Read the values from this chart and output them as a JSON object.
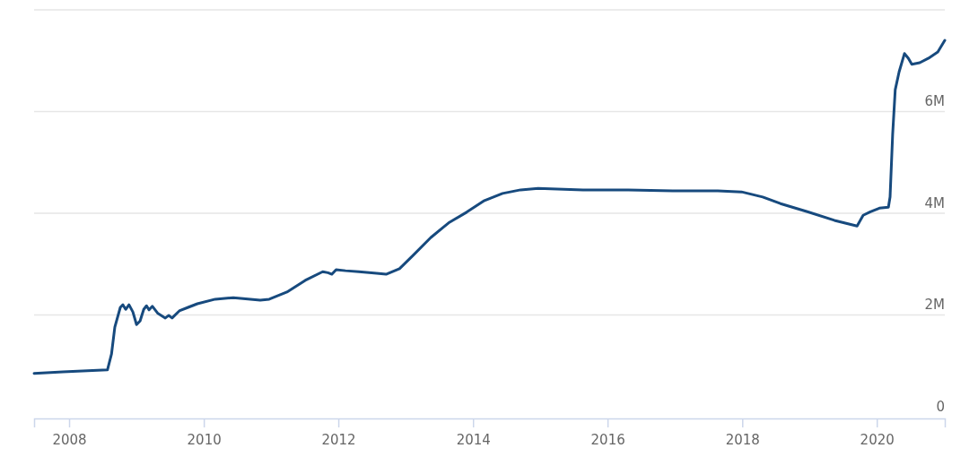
{
  "chart_data": {
    "type": "line",
    "x": [
      "2007-06-25",
      "2007-11-28",
      "2008-07-27",
      "2008-08-18",
      "2008-09-05",
      "2008-10-05",
      "2008-10-19",
      "2008-11-03",
      "2008-11-21",
      "2008-12-12",
      "2009-01-01",
      "2009-01-20",
      "2009-02-09",
      "2009-02-24",
      "2009-03-10",
      "2009-03-28",
      "2009-04-27",
      "2009-06-06",
      "2009-06-24",
      "2009-07-13",
      "2009-08-21",
      "2009-10-08",
      "2009-11-27",
      "2010-03-04",
      "2010-06-10",
      "2010-11-03",
      "2010-12-22",
      "2011-03-28",
      "2011-07-05",
      "2011-10-08",
      "2011-11-06",
      "2011-11-27",
      "2011-12-20",
      "2012-02-09",
      "2012-04-22",
      "2012-07-27",
      "2012-09-16",
      "2012-11-28",
      "2013-02-09",
      "2013-05-16",
      "2013-08-21",
      "2013-11-27",
      "2014-03-04",
      "2014-06-10",
      "2014-09-16",
      "2014-12-20",
      "2015-08-21",
      "2016-04-22",
      "2016-12-20",
      "2017-08-21",
      "2017-12-28",
      "2018-04-22",
      "2018-07-27",
      "2018-12-20",
      "2019-05-16",
      "2019-09-16",
      "2019-10-19",
      "2019-11-27",
      "2020-01-15",
      "2020-03-04",
      "2020-03-13",
      "2020-03-27",
      "2020-04-10",
      "2020-05-01",
      "2020-05-30",
      "2020-06-20",
      "2020-07-09",
      "2020-08-21",
      "2020-10-08",
      "2020-11-27",
      "2021-01-04"
    ],
    "series": [
      {
        "color": "#174a7e",
        "values": [
          0.85,
          0.88,
          0.92,
          1.23,
          1.76,
          2.15,
          2.2,
          2.11,
          2.2,
          2.06,
          1.81,
          1.88,
          2.11,
          2.18,
          2.1,
          2.17,
          2.03,
          1.94,
          1.99,
          1.94,
          2.08,
          2.15,
          2.22,
          2.31,
          2.34,
          2.29,
          2.31,
          2.45,
          2.68,
          2.85,
          2.83,
          2.8,
          2.89,
          2.87,
          2.85,
          2.82,
          2.8,
          2.91,
          3.17,
          3.52,
          3.81,
          4.02,
          4.25,
          4.39,
          4.46,
          4.49,
          4.46,
          4.46,
          4.44,
          4.44,
          4.42,
          4.32,
          4.19,
          4.03,
          3.86,
          3.75,
          3.96,
          4.03,
          4.1,
          4.12,
          4.32,
          5.55,
          6.43,
          6.78,
          7.14,
          7.05,
          6.93,
          6.96,
          7.05,
          7.17,
          7.4
        ]
      }
    ],
    "xlim": [
      "2007-06-25",
      "2021-01-04"
    ],
    "xticks": [
      {
        "value": "2008",
        "label": "2008"
      },
      {
        "value": "2010",
        "label": "2010"
      },
      {
        "value": "2012",
        "label": "2012"
      },
      {
        "value": "2014",
        "label": "2014"
      },
      {
        "value": "2016",
        "label": "2016"
      },
      {
        "value": "2018",
        "label": "2018"
      },
      {
        "value": "2020",
        "label": "2020"
      }
    ],
    "ylim": [
      0,
      8
    ],
    "yticks": [
      {
        "value": 0,
        "label": "0"
      },
      {
        "value": 2,
        "label": "2M"
      },
      {
        "value": 4,
        "label": "4M"
      },
      {
        "value": 6,
        "label": "6M"
      },
      {
        "value": 8,
        "label": null
      }
    ],
    "grid": "y",
    "marker": "none",
    "line_style": "solid"
  }
}
